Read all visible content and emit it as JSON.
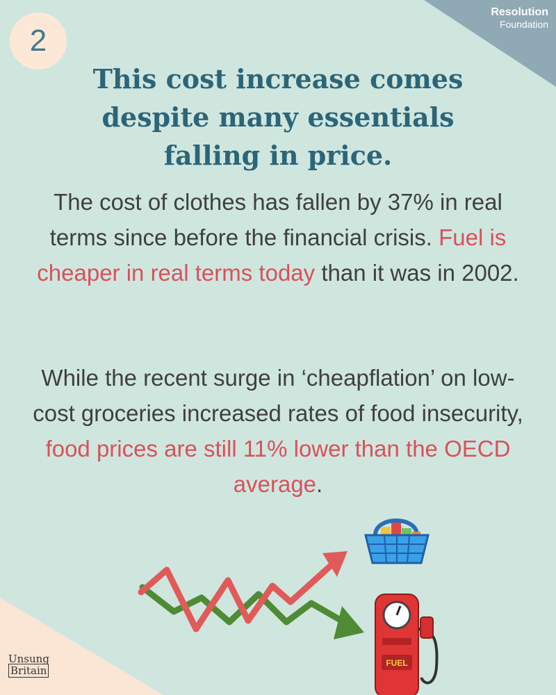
{
  "step_number": "2",
  "brand": {
    "line1": "Resolution",
    "line2": "Foundation"
  },
  "title": "This cost increase comes despite many essentials falling in price.",
  "paragraph1": {
    "part1": "The cost of clothes has fallen by 37% in real terms since before the financial crisis. ",
    "highlight": "Fuel is cheaper in real terms today",
    "part2": " than it was in 2002."
  },
  "paragraph2": {
    "part1": "While the recent surge in ‘cheapflation’ on low-cost groceries increased rates of food insecurity, ",
    "highlight": "food prices are still 11% lower than the OECD average",
    "part2": "."
  },
  "footer_brand": {
    "line1": "Unsung",
    "line2": "Britain"
  },
  "pump_label": "FUEL",
  "colors": {
    "background": "#cfe6df",
    "title": "#2c6577",
    "body_text": "#3f3f3f",
    "highlight": "#d9515a",
    "corner_top_right": "#8fa9b5",
    "corner_bottom_left": "#fbe5d5",
    "arrow_up": "#e05a5a",
    "arrow_down": "#4f8a34"
  },
  "icons": [
    "shopping-basket-icon",
    "fuel-pump-icon",
    "rising-arrow-icon",
    "falling-arrow-icon"
  ]
}
